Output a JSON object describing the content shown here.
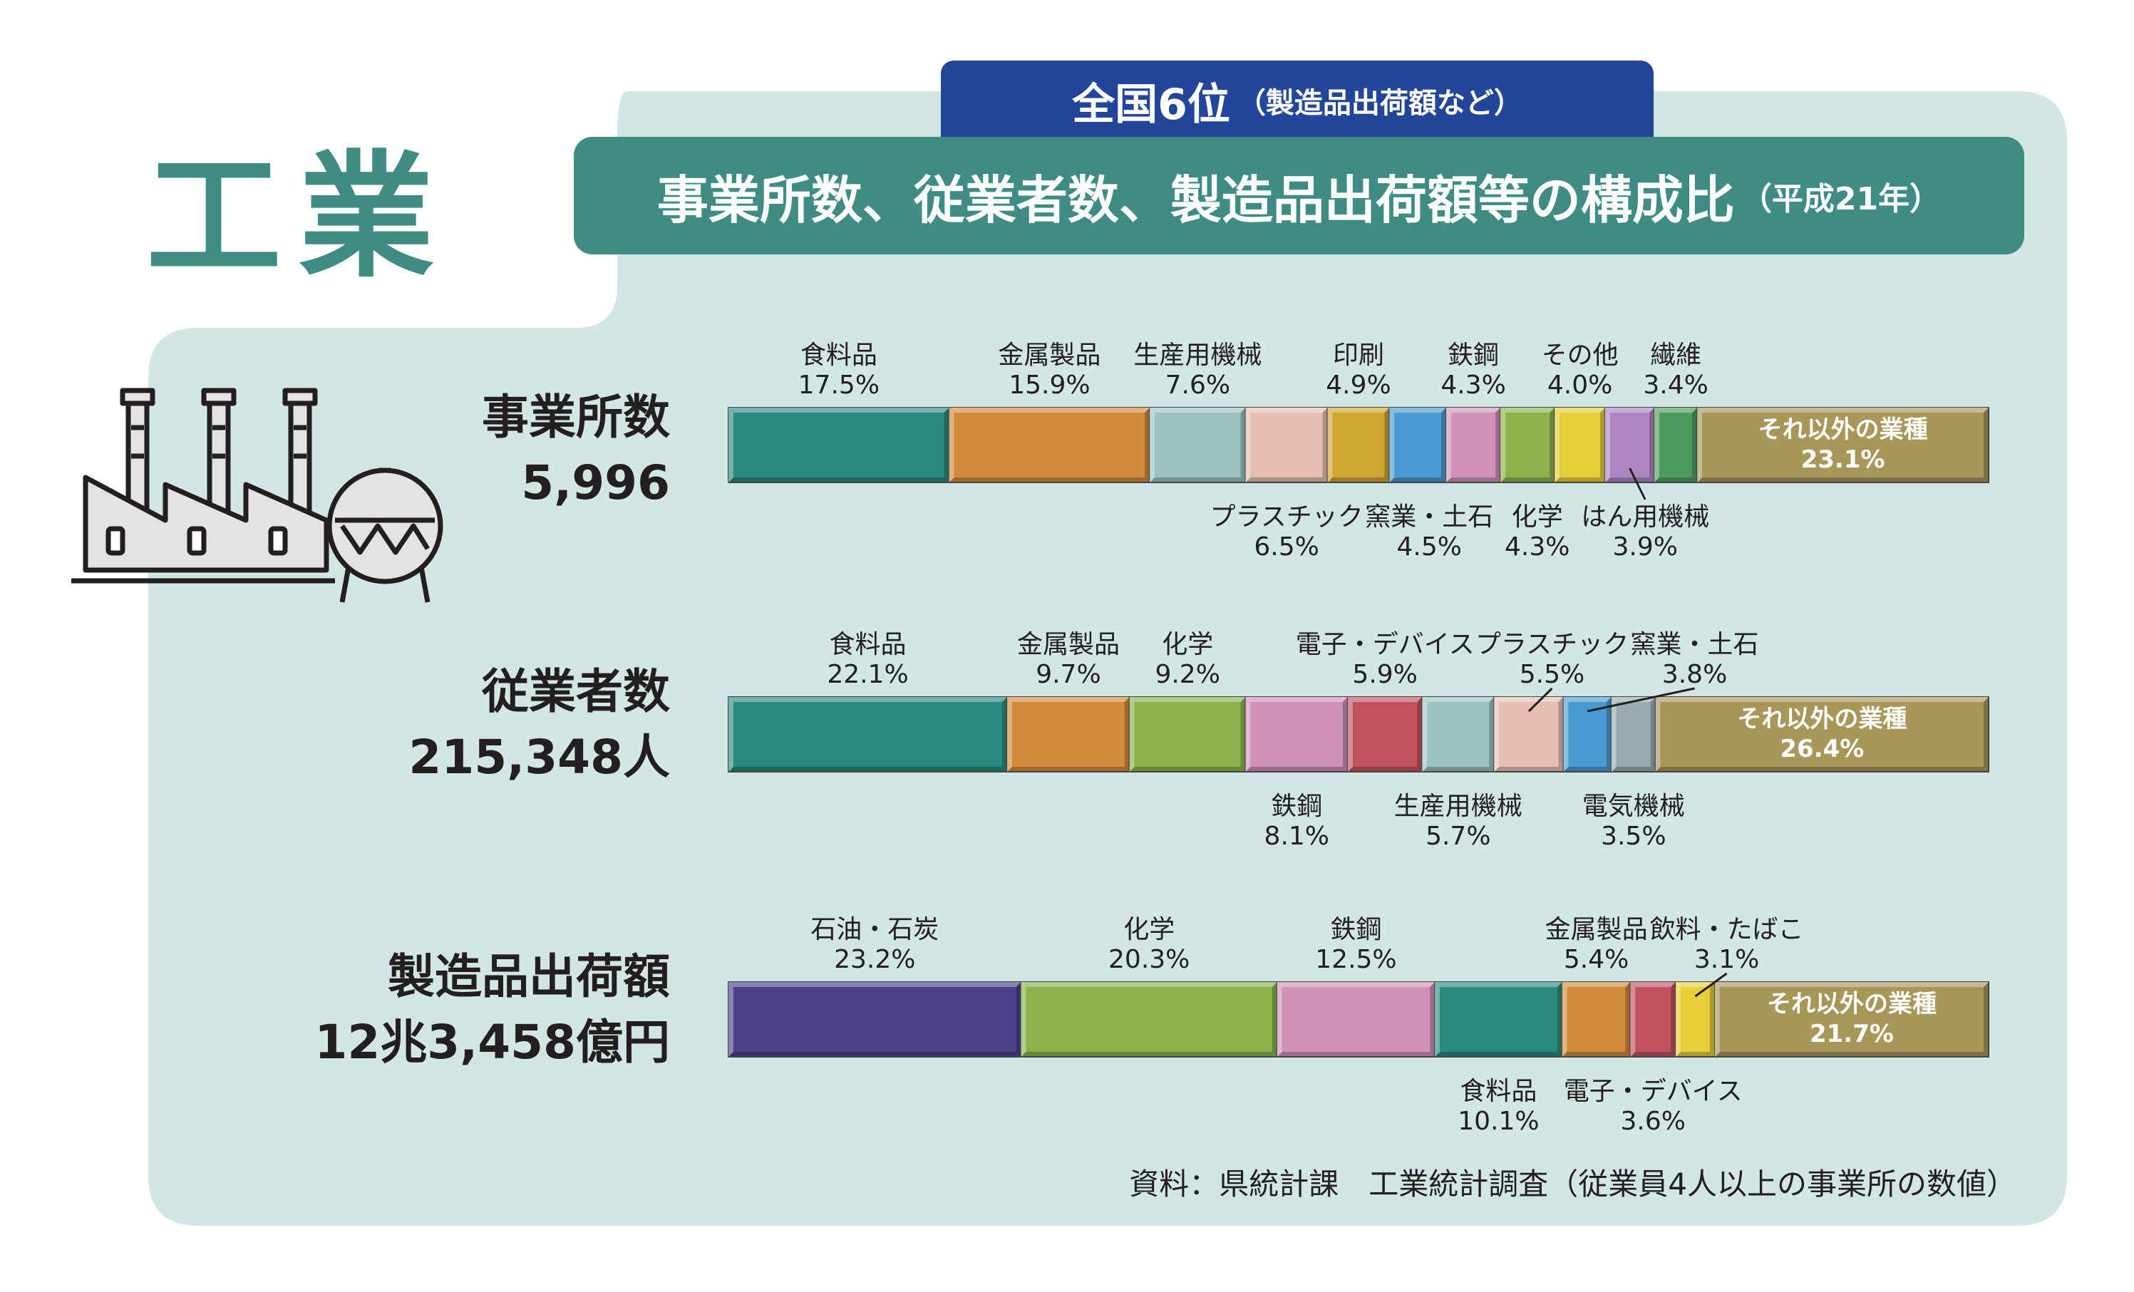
{
  "header": {
    "big_title": "工業",
    "rank_main": "全国6位",
    "rank_sub": "（製造品出荷額など）",
    "subtitle_main": "事業所数、従業者数、製造品出荷額等の構成比",
    "subtitle_sub": "（平成21年）"
  },
  "source": "資料：県統計課　工業統計調査（従業員4人以上の事業所の数値）",
  "icons": {
    "illustration": "factory-icon"
  },
  "chart_data": {
    "type": "bar",
    "orientation": "horizontal-stacked-100",
    "rows": [
      {
        "name": "事業所数",
        "total": "5,996",
        "segments": [
          {
            "label": "食料品",
            "pct": 17.5,
            "color": "#2a8a7f",
            "pos": "above"
          },
          {
            "label": "金属製品",
            "pct": 15.9,
            "color": "#d28a3b",
            "pos": "above"
          },
          {
            "label": "生産用機械",
            "pct": 7.6,
            "color": "#9cc3c0",
            "pos": "above"
          },
          {
            "label": "プラスチック",
            "pct": 6.5,
            "color": "#e5c0b2",
            "pos": "below"
          },
          {
            "label": "印刷",
            "pct": 4.9,
            "color": "#cfa631",
            "pos": "above"
          },
          {
            "label": "窯業・土石",
            "pct": 4.5,
            "color": "#4a9ad2",
            "pos": "below"
          },
          {
            "label": "鉄鋼",
            "pct": 4.3,
            "color": "#cf91b5",
            "pos": "above"
          },
          {
            "label": "化学",
            "pct": 4.3,
            "color": "#8db24b",
            "pos": "below"
          },
          {
            "label": "その他",
            "pct": 4.0,
            "color": "#e6cf3a",
            "pos": "above"
          },
          {
            "label": "はん用機械",
            "pct": 3.9,
            "color": "#ad86c2",
            "pos": "below"
          },
          {
            "label": "繊維",
            "pct": 3.4,
            "color": "#4e9a5e",
            "pos": "above"
          },
          {
            "label": "それ以外の業種",
            "pct": 23.1,
            "color": "#a99659",
            "pos": "inside"
          }
        ]
      },
      {
        "name": "従業者数",
        "total": "215,348人",
        "segments": [
          {
            "label": "食料品",
            "pct": 22.1,
            "color": "#2a8a7f",
            "pos": "above"
          },
          {
            "label": "金属製品",
            "pct": 9.7,
            "color": "#d28a3b",
            "pos": "above"
          },
          {
            "label": "化学",
            "pct": 9.2,
            "color": "#8db24b",
            "pos": "above"
          },
          {
            "label": "鉄鋼",
            "pct": 8.1,
            "color": "#cf91b5",
            "pos": "below"
          },
          {
            "label": "電子・デバイス",
            "pct": 5.9,
            "color": "#c2525f",
            "pos": "above"
          },
          {
            "label": "生産用機械",
            "pct": 5.7,
            "color": "#9cc3c0",
            "pos": "below"
          },
          {
            "label": "プラスチック",
            "pct": 5.5,
            "color": "#e5c0b2",
            "pos": "above"
          },
          {
            "label": "窯業・土石",
            "pct": 3.8,
            "color": "#4a9ad2",
            "pos": "above"
          },
          {
            "label": "電気機械",
            "pct": 3.5,
            "color": "#9aaab0",
            "pos": "below"
          },
          {
            "label": "それ以外の業種",
            "pct": 26.4,
            "color": "#a99659",
            "pos": "inside"
          }
        ]
      },
      {
        "name": "製造品出荷額",
        "total": "12兆3,458億円",
        "segments": [
          {
            "label": "石油・石炭",
            "pct": 23.2,
            "color": "#4a4189",
            "pos": "above"
          },
          {
            "label": "化学",
            "pct": 20.3,
            "color": "#8db24b",
            "pos": "above"
          },
          {
            "label": "鉄鋼",
            "pct": 12.5,
            "color": "#cf91b5",
            "pos": "above"
          },
          {
            "label": "食料品",
            "pct": 10.1,
            "color": "#2a8a7f",
            "pos": "below"
          },
          {
            "label": "金属製品",
            "pct": 5.4,
            "color": "#d28a3b",
            "pos": "above"
          },
          {
            "label": "電子・デバイス",
            "pct": 3.6,
            "color": "#c2525f",
            "pos": "below"
          },
          {
            "label": "飲料・たばこ",
            "pct": 3.1,
            "color": "#e6cf3a",
            "pos": "above"
          },
          {
            "label": "それ以外の業種",
            "pct": 21.7,
            "color": "#a99659",
            "pos": "inside"
          }
        ]
      }
    ]
  }
}
